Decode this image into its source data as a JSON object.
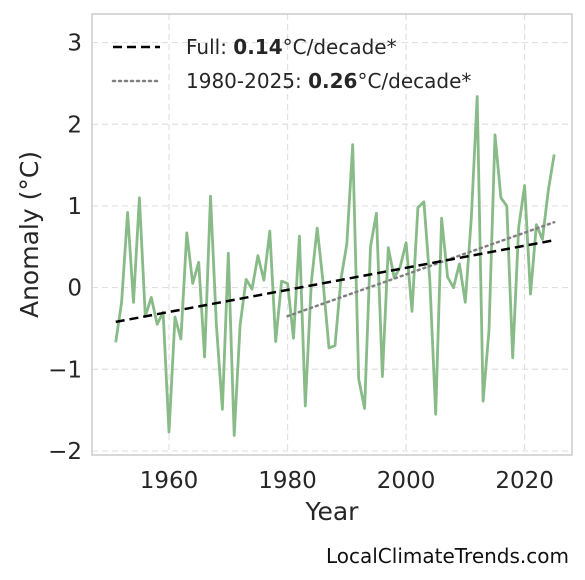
{
  "chart_data": {
    "type": "line",
    "title": "",
    "xlabel": "Year",
    "ylabel": "Anomaly (°C)",
    "xlim": [
      1947,
      2028
    ],
    "ylim": [
      -2.05,
      3.35
    ],
    "xticks": [
      1960,
      1980,
      2000,
      2020
    ],
    "xtick_labels": [
      "1960",
      "1980",
      "2000",
      "2020"
    ],
    "yticks": [
      -2,
      -1,
      0,
      1,
      2,
      3
    ],
    "ytick_labels": [
      "−2",
      "−1",
      "0",
      "1",
      "2",
      "3"
    ],
    "grid": true,
    "legend_position": "top-left",
    "colors": {
      "data": "#88bb88",
      "full_trend": "#000000",
      "recent_trend": "#808080"
    },
    "series": [
      {
        "x": [
          1951,
          1952,
          1953,
          1954,
          1955,
          1956,
          1957,
          1958,
          1959,
          1960,
          1961,
          1962,
          1963,
          1964,
          1965,
          1966,
          1967,
          1968,
          1969,
          1970,
          1971,
          1972,
          1973,
          1974,
          1975,
          1976,
          1977,
          1978,
          1979,
          1980,
          1981,
          1982,
          1983,
          1984,
          1985,
          1986,
          1987,
          1988,
          1989,
          1990,
          1991,
          1992,
          1993,
          1994,
          1995,
          1996,
          1997,
          1998,
          1999,
          2000,
          2001,
          2002,
          2003,
          2004,
          2005,
          2006,
          2007,
          2008,
          2009,
          2010,
          2011,
          2012,
          2013,
          2014,
          2015,
          2016,
          2017,
          2018,
          2019,
          2020,
          2021,
          2022,
          2023,
          2024,
          2025
        ],
        "values": [
          -0.67,
          -0.18,
          0.92,
          -0.18,
          1.1,
          -0.35,
          -0.12,
          -0.45,
          -0.3,
          -1.77,
          -0.36,
          -0.63,
          0.67,
          0.05,
          0.31,
          -0.85,
          1.12,
          -0.46,
          -1.49,
          0.42,
          -1.81,
          -0.46,
          0.1,
          -0.02,
          0.39,
          0.09,
          0.69,
          -0.66,
          0.08,
          0.05,
          -0.62,
          0.63,
          -1.45,
          0.06,
          0.73,
          0.06,
          -0.74,
          -0.71,
          0.1,
          0.53,
          1.75,
          -1.12,
          -1.48,
          0.5,
          0.91,
          -1.09,
          0.49,
          0.12,
          0.25,
          0.55,
          -0.29,
          0.98,
          1.05,
          0.09,
          -1.55,
          0.85,
          0.13,
          0.0,
          0.29,
          -0.18,
          0.85,
          2.34,
          -1.39,
          -0.52,
          1.87,
          1.1,
          1.0,
          -0.86,
          0.74,
          1.25,
          -0.08,
          0.77,
          0.59,
          1.19,
          1.63
        ]
      }
    ],
    "trends": [
      {
        "name": "Full",
        "rate": "0.14",
        "x": [
          1951,
          2025
        ],
        "y": [
          -0.42,
          0.58
        ]
      },
      {
        "name": "1980-2025",
        "rate": "0.26",
        "x": [
          1980,
          2025
        ],
        "y": [
          -0.35,
          0.8
        ]
      }
    ],
    "legend": [
      {
        "prefix": "Full: ",
        "value": "0.14",
        "suffix": "°C/decade*"
      },
      {
        "prefix": "1980-2025: ",
        "value": "0.26",
        "suffix": "°C/decade*"
      }
    ]
  },
  "footer": {
    "credit": "LocalClimateTrends.com"
  }
}
